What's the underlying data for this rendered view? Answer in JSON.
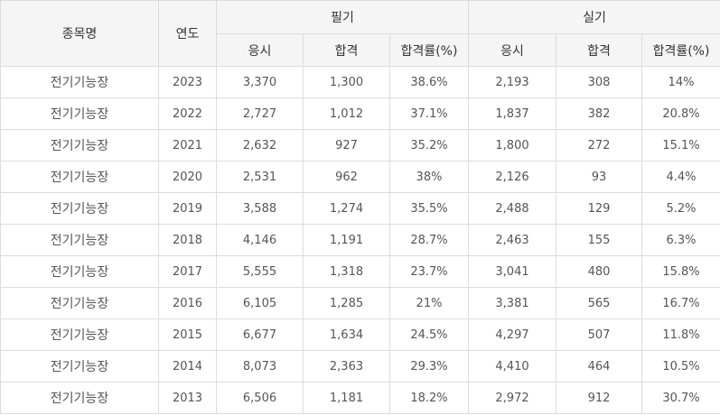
{
  "header": {
    "item": "종목명",
    "year": "연도",
    "written": "필기",
    "practical": "실기",
    "applicants": "응시",
    "passed": "합격",
    "rate": "합격률(%)"
  },
  "rows": [
    {
      "name": "전기기능장",
      "year": "2023",
      "w_app": "3,370",
      "w_pass": "1,300",
      "w_rate": "38.6%",
      "p_app": "2,193",
      "p_pass": "308",
      "p_rate": "14%"
    },
    {
      "name": "전기기능장",
      "year": "2022",
      "w_app": "2,727",
      "w_pass": "1,012",
      "w_rate": "37.1%",
      "p_app": "1,837",
      "p_pass": "382",
      "p_rate": "20.8%"
    },
    {
      "name": "전기기능장",
      "year": "2021",
      "w_app": "2,632",
      "w_pass": "927",
      "w_rate": "35.2%",
      "p_app": "1,800",
      "p_pass": "272",
      "p_rate": "15.1%"
    },
    {
      "name": "전기기능장",
      "year": "2020",
      "w_app": "2,531",
      "w_pass": "962",
      "w_rate": "38%",
      "p_app": "2,126",
      "p_pass": "93",
      "p_rate": "4.4%"
    },
    {
      "name": "전기기능장",
      "year": "2019",
      "w_app": "3,588",
      "w_pass": "1,274",
      "w_rate": "35.5%",
      "p_app": "2,488",
      "p_pass": "129",
      "p_rate": "5.2%"
    },
    {
      "name": "전기기능장",
      "year": "2018",
      "w_app": "4,146",
      "w_pass": "1,191",
      "w_rate": "28.7%",
      "p_app": "2,463",
      "p_pass": "155",
      "p_rate": "6.3%"
    },
    {
      "name": "전기기능장",
      "year": "2017",
      "w_app": "5,555",
      "w_pass": "1,318",
      "w_rate": "23.7%",
      "p_app": "3,041",
      "p_pass": "480",
      "p_rate": "15.8%"
    },
    {
      "name": "전기기능장",
      "year": "2016",
      "w_app": "6,105",
      "w_pass": "1,285",
      "w_rate": "21%",
      "p_app": "3,381",
      "p_pass": "565",
      "p_rate": "16.7%"
    },
    {
      "name": "전기기능장",
      "year": "2015",
      "w_app": "6,677",
      "w_pass": "1,634",
      "w_rate": "24.5%",
      "p_app": "4,297",
      "p_pass": "507",
      "p_rate": "11.8%"
    },
    {
      "name": "전기기능장",
      "year": "2014",
      "w_app": "8,073",
      "w_pass": "2,363",
      "w_rate": "29.3%",
      "p_app": "4,410",
      "p_pass": "464",
      "p_rate": "10.5%"
    },
    {
      "name": "전기기능장",
      "year": "2013",
      "w_app": "6,506",
      "w_pass": "1,181",
      "w_rate": "18.2%",
      "p_app": "2,972",
      "p_pass": "912",
      "p_rate": "30.7%"
    }
  ]
}
